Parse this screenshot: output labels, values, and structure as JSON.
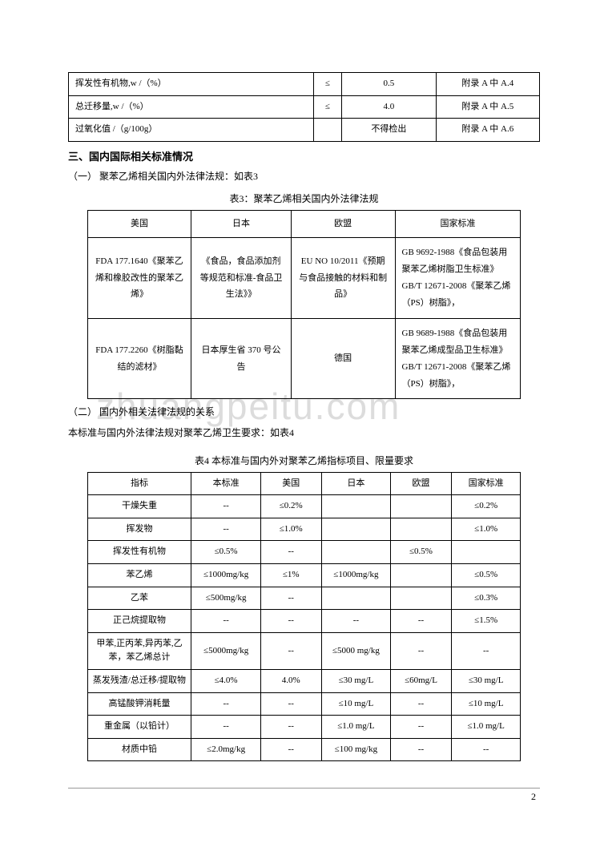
{
  "watermark": "zhuangpeitu.com",
  "page_number": "2",
  "table1": {
    "rows": [
      {
        "label": "挥发性有机物,w /（%）",
        "op": "≤",
        "val": "0.5",
        "ref": "附录 A 中 A.4"
      },
      {
        "label": "总迁移量,w /（%）",
        "op": "≤",
        "val": "4.0",
        "ref": "附录 A 中 A.5"
      },
      {
        "label": "过氧化值  /（g/100g）",
        "op": "",
        "val": "不得检出",
        "ref": "附录 A 中 A.6"
      }
    ]
  },
  "section3": {
    "heading": "三、国内国际相关标准情况",
    "para1": "（一）  聚苯乙烯相关国内外法律法规：如表3",
    "caption1": "表3：聚苯乙烯相关国内外法律法规",
    "para2": "（二）  国内外相关法律法规的关系",
    "para3": "本标准与国内外法律法规对聚苯乙烯卫生要求：如表4",
    "caption2": "表4  本标准与国内外对聚苯乙烯指标项目、限量要求"
  },
  "table3": {
    "headers": [
      "美国",
      "日本",
      "欧盟",
      "国家标准"
    ],
    "rows": [
      {
        "c1": "FDA 177.1640《聚苯乙烯和橡胶改性的聚苯乙烯》",
        "c2": "《食品，食品添加剂等规范和标准-食品卫生法》》",
        "c3": "EU NO 10/2011《预期与食品接触的材料和制品》",
        "c4": "GB 9692-1988《食品包装用聚苯乙烯树脂卫生标准》\nGB/T 12671-2008《聚苯乙烯（PS）树脂》，"
      },
      {
        "c1": "FDA 177.2260《树脂黏结的滤材》",
        "c2": "日本厚生省 370 号公告",
        "c3": "德国",
        "c4": "GB 9689-1988《食品包装用聚苯乙烯成型品卫生标准》GB/T 12671-2008《聚苯乙烯（PS）树脂》，"
      }
    ]
  },
  "table4": {
    "headers": [
      "指标",
      "本标准",
      "美国",
      "日本",
      "欧盟",
      "国家标准"
    ],
    "rows": [
      {
        "i": "干燥失重",
        "b": "--",
        "u": "≤0.2%",
        "j": "",
        "e": "",
        "n": "≤0.2%"
      },
      {
        "i": "挥发物",
        "b": "--",
        "u": "≤1.0%",
        "j": "",
        "e": "",
        "n": "≤1.0%"
      },
      {
        "i": "挥发性有机物",
        "b": "≤0.5%",
        "u": "--",
        "j": "",
        "e": "≤0.5%",
        "n": ""
      },
      {
        "i": "苯乙烯",
        "b": "≤1000mg/kg",
        "u": "≤1%",
        "j": "≤1000mg/kg",
        "e": "",
        "n": "≤0.5%"
      },
      {
        "i": "乙苯",
        "b": "≤500mg/kg",
        "u": "--",
        "j": "",
        "e": "",
        "n": "≤0.3%"
      },
      {
        "i": "正己烷提取物",
        "b": "--",
        "u": "--",
        "j": "--",
        "e": "--",
        "n": "≤1.5%"
      },
      {
        "i": "甲苯,正丙苯,异丙苯,乙苯，苯乙烯总计",
        "b": "≤5000mg/kg",
        "u": "--",
        "j": "≤5000 mg/kg",
        "e": "--",
        "n": "--"
      },
      {
        "i": "蒸发残渣/总迁移/提取物",
        "b": "≤4.0%",
        "u": "4.0%",
        "j": "≤30 mg/L",
        "e": "≤60mg/L",
        "n": "≤30 mg/L"
      },
      {
        "i": "高锰酸钾消耗量",
        "b": "--",
        "u": "--",
        "j": "≤10 mg/L",
        "e": "--",
        "n": "≤10 mg/L"
      },
      {
        "i": "重金属（以铅计）",
        "b": "--",
        "u": "--",
        "j": "≤1.0 mg/L",
        "e": "--",
        "n": "≤1.0 mg/L"
      },
      {
        "i": "材质中铅",
        "b": "≤2.0mg/kg",
        "u": "--",
        "j": "≤100 mg/kg",
        "e": "--",
        "n": "--"
      }
    ]
  }
}
